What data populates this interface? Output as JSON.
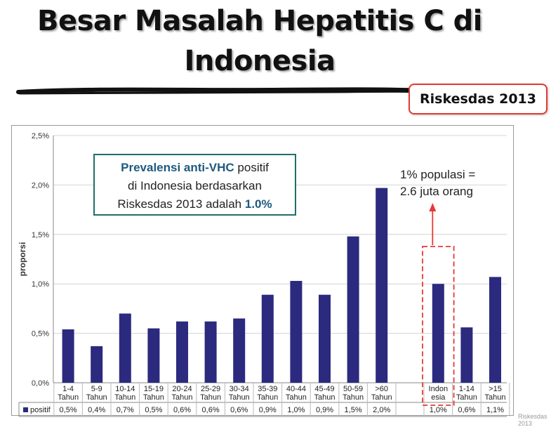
{
  "slide": {
    "title_line1": "Besar Masalah Hepatitis C di",
    "title_line2": "Indonesia",
    "source_badge": "Riskesdas 2013",
    "watermark": "Riskesdas 2013"
  },
  "callout": {
    "part1": "Prevalensi anti-VHC",
    "part2": " positif",
    "part3": "di Indonesia berdasarkan",
    "part4": "Riskesdas 2013 adalah ",
    "part5": "1.0%"
  },
  "note": {
    "line1": "1% populasi =",
    "line2": "2.6 juta orang"
  },
  "colors": {
    "bar": "#2b2a7f",
    "highlight": "#e53935",
    "callout_border": "#1f6f6a",
    "callout_text": "#1e5a7e"
  },
  "chart_data": {
    "type": "bar",
    "title": "",
    "xlabel": "",
    "ylabel": "proporsi",
    "ylim": [
      0,
      2.5
    ],
    "yticks": [
      "0,0%",
      "0,5%",
      "1,0%",
      "1,5%",
      "2,0%",
      "2,5%"
    ],
    "grid": true,
    "legend": "positif",
    "categories": [
      [
        "1-4",
        "Tahun"
      ],
      [
        "5-9",
        "Tahun"
      ],
      [
        "10-14",
        "Tahun"
      ],
      [
        "15-19",
        "Tahun"
      ],
      [
        "20-24",
        "Tahun"
      ],
      [
        "25-29",
        "Tahun"
      ],
      [
        "30-34",
        "Tahun"
      ],
      [
        "35-39",
        "Tahun"
      ],
      [
        "40-44",
        "Tahun"
      ],
      [
        "45-49",
        "Tahun"
      ],
      [
        "50-59",
        "Tahun"
      ],
      [
        ">60",
        "Tahun"
      ],
      [
        "Indon",
        "esia"
      ],
      [
        "1-14",
        "Tahun"
      ],
      [
        ">15",
        "Tahun"
      ]
    ],
    "series": [
      {
        "name": "positif",
        "values": [
          0.54,
          0.37,
          0.7,
          0.55,
          0.62,
          0.62,
          0.65,
          0.89,
          1.03,
          0.89,
          1.48,
          1.97,
          1.0,
          0.56,
          1.07
        ],
        "labels": [
          "0,5%",
          "0,4%",
          "0,7%",
          "0,5%",
          "0,6%",
          "0,6%",
          "0,6%",
          "0,9%",
          "1,0%",
          "0,9%",
          "1,5%",
          "2,0%",
          "1,0%",
          "0,6%",
          "1,1%"
        ]
      }
    ],
    "highlighted_category": "Indonesia"
  }
}
